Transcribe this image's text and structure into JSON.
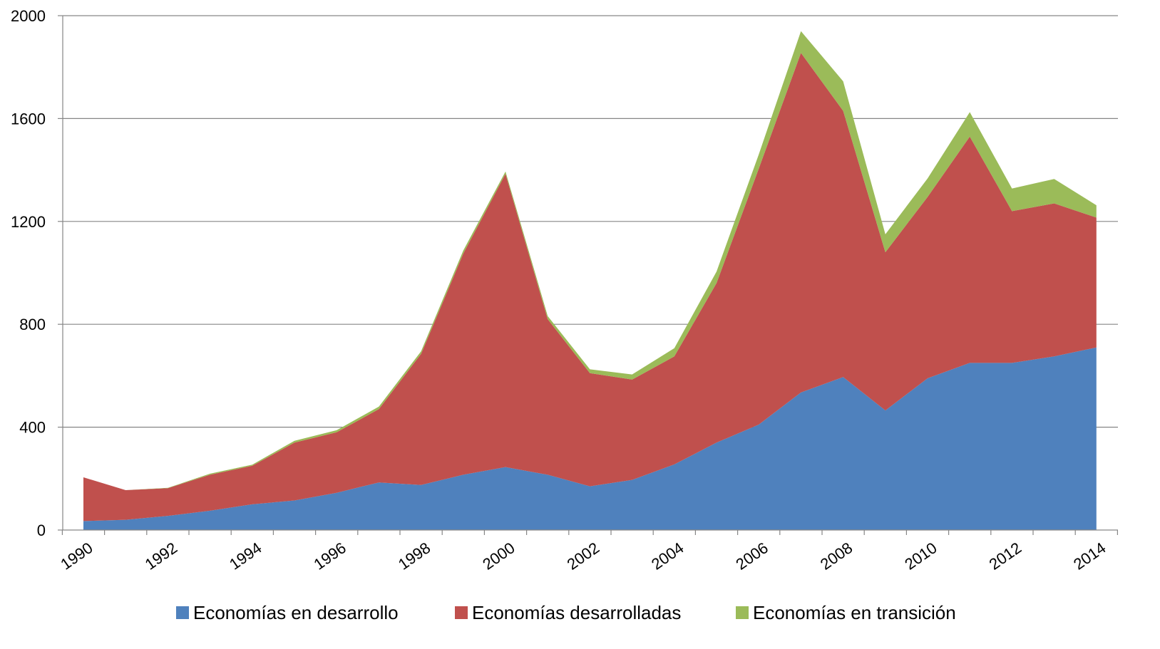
{
  "chart_data": {
    "type": "area",
    "stacked": true,
    "x": [
      1990,
      1991,
      1992,
      1993,
      1994,
      1995,
      1996,
      1997,
      1998,
      1999,
      2000,
      2001,
      2002,
      2003,
      2004,
      2005,
      2006,
      2007,
      2008,
      2009,
      2010,
      2011,
      2012,
      2013,
      2014
    ],
    "x_tick_labels": [
      "1990",
      "1992",
      "1994",
      "1996",
      "1998",
      "2000",
      "2002",
      "2004",
      "2006",
      "2008",
      "2010",
      "2012",
      "2014"
    ],
    "y_tick_labels": [
      "0",
      "400",
      "800",
      "1200",
      "1600",
      "2000"
    ],
    "ylim": [
      0,
      2000
    ],
    "grid": true,
    "legend_position": "bottom",
    "series": [
      {
        "name": "Economías en desarrollo",
        "color": "#4F81BD",
        "values": [
          35,
          40,
          55,
          75,
          100,
          115,
          145,
          185,
          175,
          215,
          245,
          215,
          170,
          195,
          255,
          340,
          410,
          535,
          595,
          465,
          590,
          650,
          650,
          675,
          710
        ]
      },
      {
        "name": "Economías desarrolladas",
        "color": "#C0504D",
        "values": [
          170,
          115,
          108,
          140,
          150,
          225,
          235,
          285,
          510,
          860,
          1140,
          605,
          440,
          390,
          420,
          620,
          995,
          1320,
          1035,
          615,
          705,
          880,
          590,
          595,
          505
        ]
      },
      {
        "name": "Economías en transición",
        "color": "#9BBB59",
        "values": [
          0,
          0,
          1,
          4,
          4,
          7,
          8,
          10,
          10,
          12,
          9,
          12,
          15,
          20,
          32,
          45,
          55,
          85,
          115,
          70,
          72,
          95,
          88,
          95,
          48
        ]
      }
    ]
  }
}
